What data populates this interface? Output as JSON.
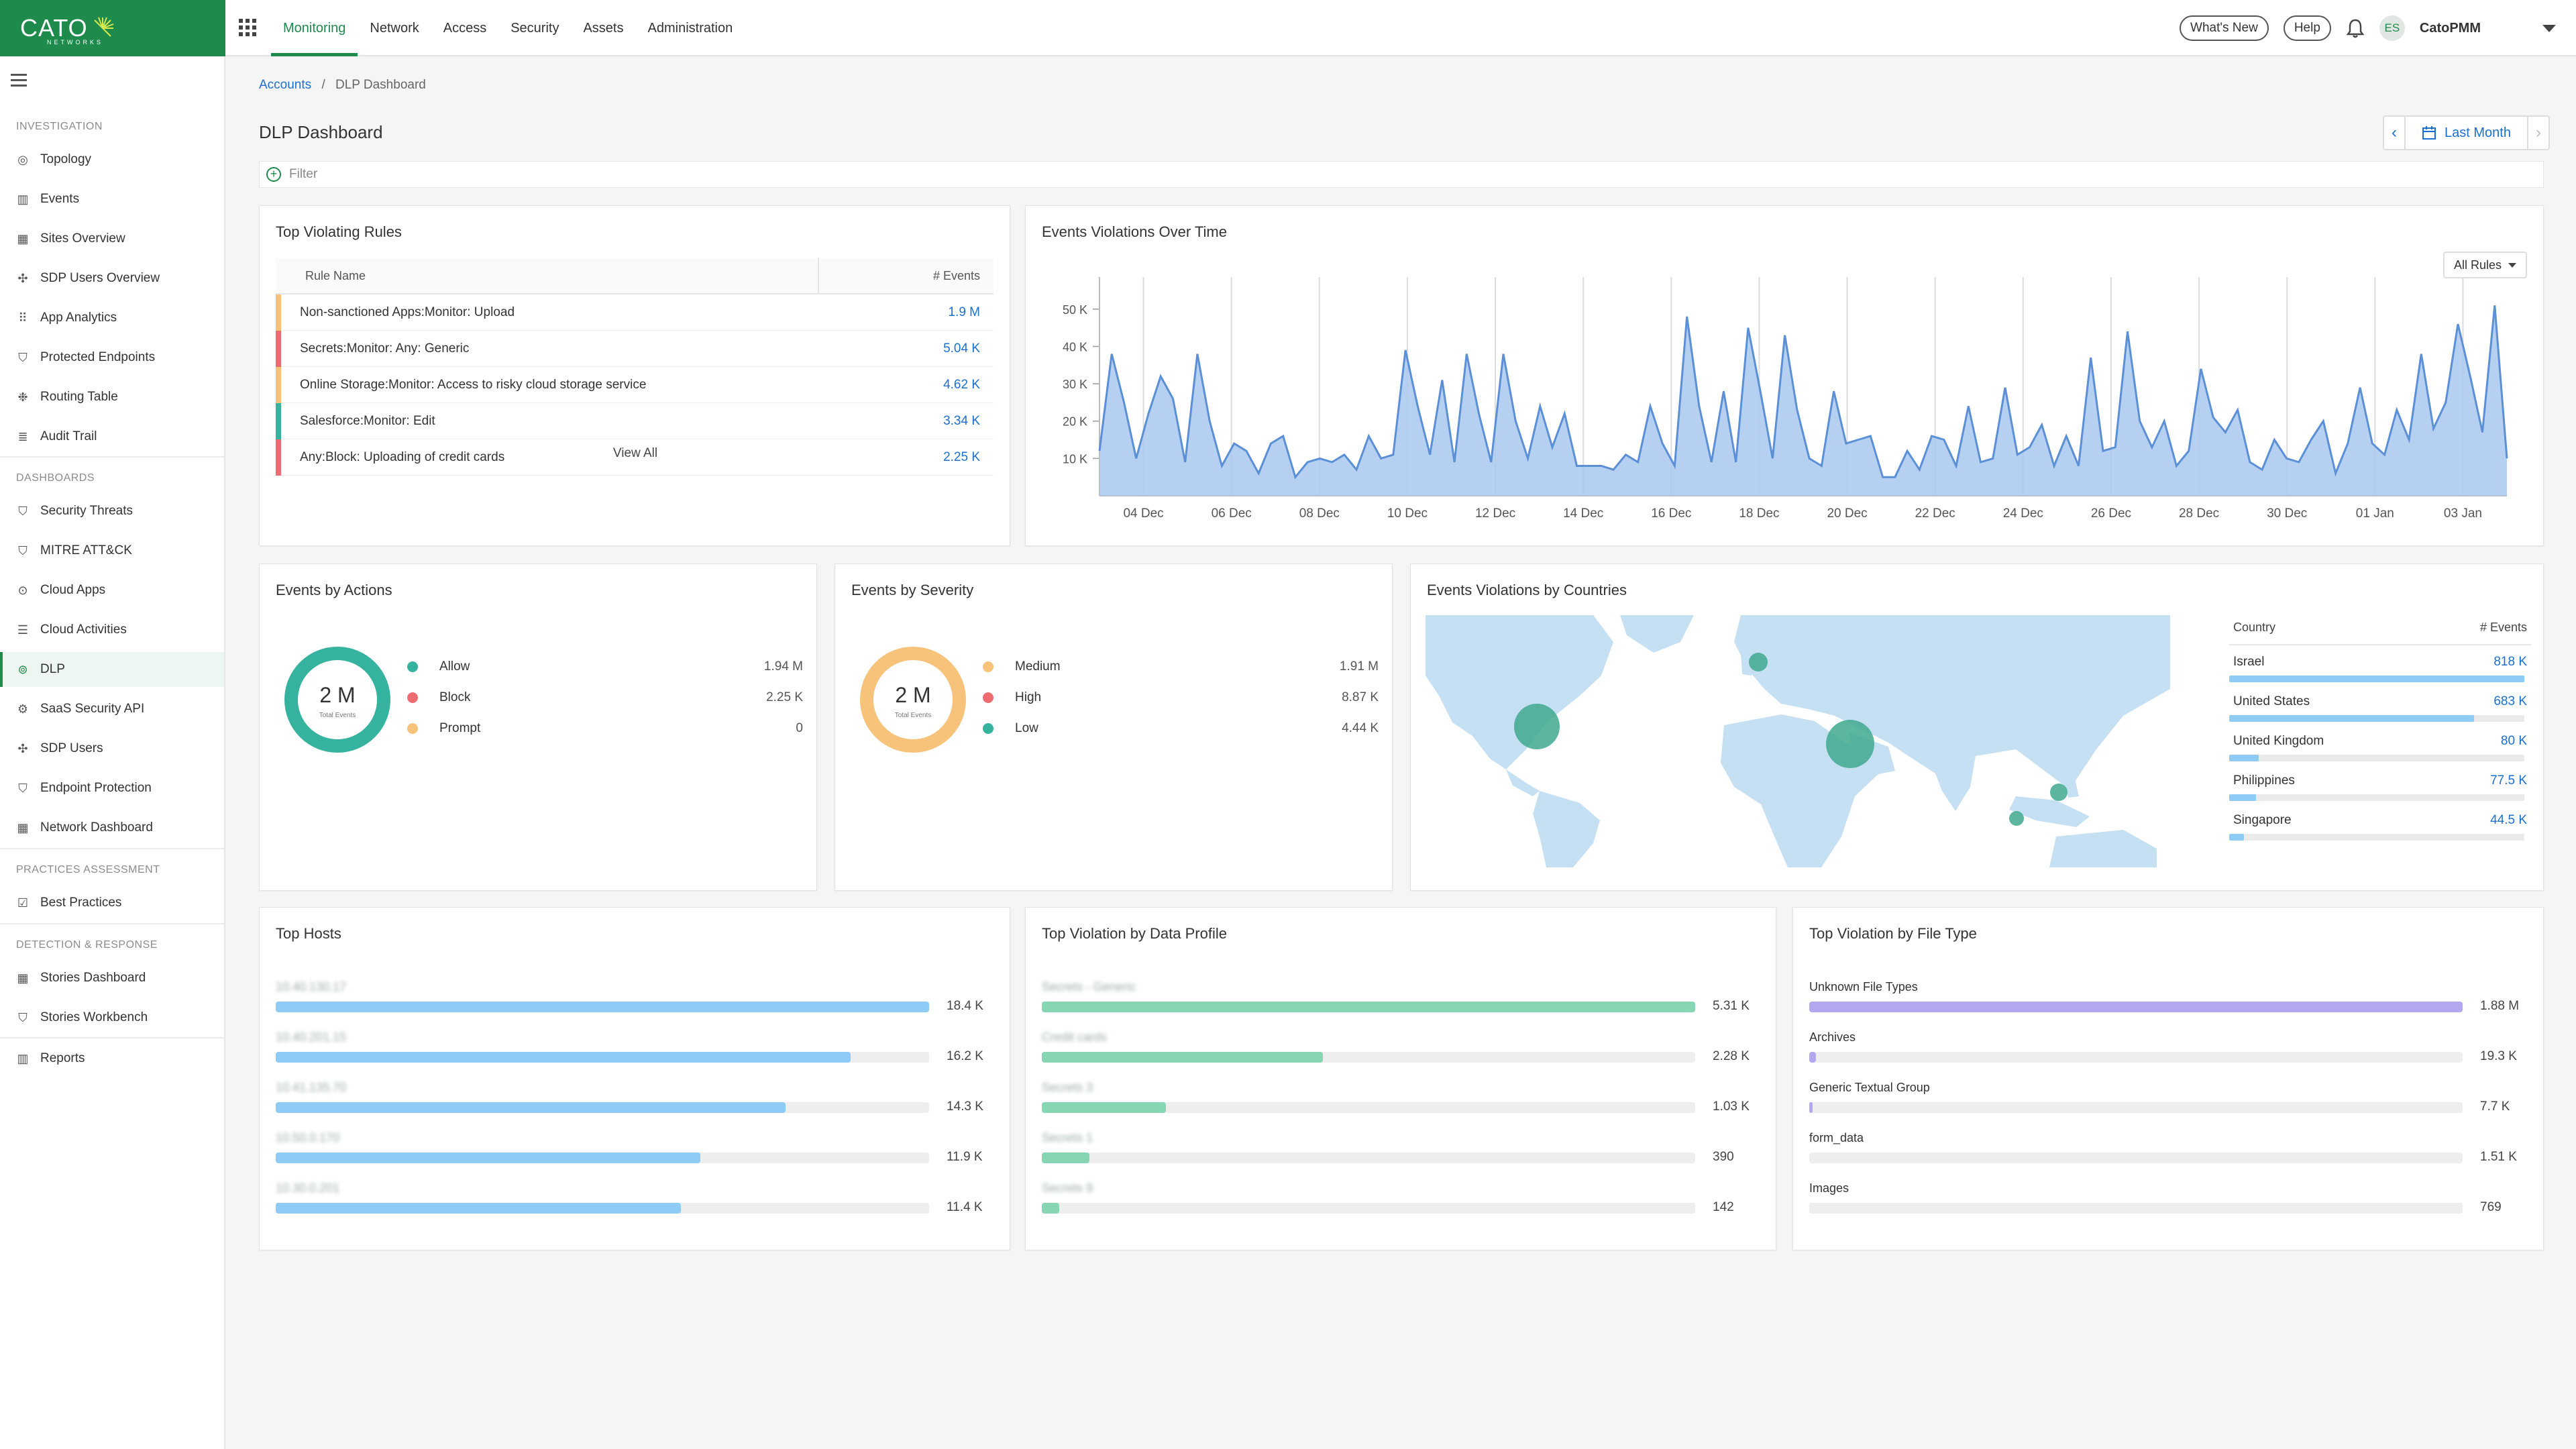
{
  "header": {
    "logo_text": "CATO",
    "logo_sub": "NETWORKS",
    "nav": [
      "Monitoring",
      "Network",
      "Access",
      "Security",
      "Assets",
      "Administration"
    ],
    "whats_new": "What's New",
    "help": "Help",
    "avatar_initials": "ES",
    "user_name": "CatoPMM"
  },
  "sidebar": {
    "sections": [
      {
        "title": "INVESTIGATION",
        "items": [
          {
            "label": "Topology",
            "icon": "target-icon"
          },
          {
            "label": "Events",
            "icon": "bar-chart-icon"
          },
          {
            "label": "Sites Overview",
            "icon": "table-icon"
          },
          {
            "label": "SDP Users Overview",
            "icon": "network-icon"
          },
          {
            "label": "App Analytics",
            "icon": "grid-icon"
          },
          {
            "label": "Protected Endpoints",
            "icon": "shield-icon"
          },
          {
            "label": "Routing Table",
            "icon": "routing-icon"
          },
          {
            "label": "Audit Trail",
            "icon": "list-icon"
          }
        ]
      },
      {
        "title": "DASHBOARDS",
        "items": [
          {
            "label": "Security Threats",
            "icon": "shield-icon"
          },
          {
            "label": "MITRE ATT&CK",
            "icon": "shield-icon"
          },
          {
            "label": "Cloud Apps",
            "icon": "cloud-app-icon"
          },
          {
            "label": "Cloud Activities",
            "icon": "list-icon"
          },
          {
            "label": "DLP",
            "icon": "dlp-icon"
          },
          {
            "label": "SaaS Security API",
            "icon": "gear-icon"
          },
          {
            "label": "SDP Users",
            "icon": "network-icon"
          },
          {
            "label": "Endpoint Protection",
            "icon": "shield-icon"
          },
          {
            "label": "Network Dashboard",
            "icon": "grid-icon"
          }
        ]
      },
      {
        "title": "PRACTICES ASSESSMENT",
        "items": [
          {
            "label": "Best Practices",
            "icon": "checkbox-icon"
          }
        ]
      },
      {
        "title": "DETECTION & RESPONSE",
        "items": [
          {
            "label": "Stories Dashboard",
            "icon": "table-icon"
          },
          {
            "label": "Stories Workbench",
            "icon": "shield-icon"
          }
        ]
      },
      {
        "title": "",
        "items": [
          {
            "label": "Reports",
            "icon": "bar-chart-icon"
          }
        ]
      }
    ],
    "active": "DLP"
  },
  "breadcrumb": {
    "root": "Accounts",
    "separator": "/",
    "current": "DLP Dashboard"
  },
  "page_title": "DLP Dashboard",
  "date_picker": {
    "label": "Last Month"
  },
  "filter": {
    "placeholder": "Filter"
  },
  "top_rules": {
    "title": "Top Violating Rules",
    "col_name": "Rule Name",
    "col_events": "# Events",
    "rows": [
      {
        "name": "Non-sanctioned Apps:Monitor: Upload",
        "events": "1.9 M",
        "color": "#f7c27a"
      },
      {
        "name": "Secrets:Monitor: Any: Generic",
        "events": "5.04 K",
        "color": "#ef6b72"
      },
      {
        "name": "Online Storage:Monitor: Access to risky cloud storage service",
        "events": "4.62 K",
        "color": "#f7c27a"
      },
      {
        "name": "Salesforce:Monitor: Edit",
        "events": "3.34 K",
        "color": "#35b39e"
      },
      {
        "name": "Any:Block: Uploading of credit cards",
        "events": "2.25 K",
        "color": "#ef6b72"
      }
    ],
    "view_all": "View All"
  },
  "violations_over_time": {
    "title": "Events Violations Over Time",
    "filter_label": "All Rules"
  },
  "chart_data": {
    "type": "area",
    "title": "Events Violations Over Time",
    "ylim": [
      0,
      55
    ],
    "yticks": [
      "10 K",
      "20 K",
      "30 K",
      "40 K",
      "50 K"
    ],
    "ytick_values": [
      10,
      20,
      30,
      40,
      50
    ],
    "xtick_labels": [
      "04 Dec",
      "06 Dec",
      "08 Dec",
      "10 Dec",
      "12 Dec",
      "14 Dec",
      "16 Dec",
      "18 Dec",
      "20 Dec",
      "22 Dec",
      "24 Dec",
      "26 Dec",
      "28 Dec",
      "30 Dec",
      "01 Jan",
      "03 Jan"
    ],
    "y": [
      12,
      38,
      25,
      10,
      22,
      32,
      26,
      9,
      38,
      20,
      8,
      14,
      12,
      6,
      14,
      16,
      5,
      9,
      10,
      9,
      11,
      7,
      16,
      10,
      11,
      39,
      24,
      11,
      31,
      9,
      38,
      22,
      9,
      38,
      20,
      10,
      24,
      13,
      22,
      8,
      8,
      8,
      7,
      11,
      9,
      24,
      14,
      8,
      48,
      24,
      9,
      28,
      9,
      45,
      28,
      10,
      43,
      23,
      10,
      8,
      28,
      14,
      15,
      16,
      5,
      5,
      12,
      7,
      16,
      15,
      8,
      24,
      9,
      10,
      29,
      11,
      13,
      19,
      8,
      16,
      8,
      37,
      12,
      13,
      44,
      20,
      13,
      20,
      8,
      12,
      34,
      21,
      17,
      23,
      9,
      7,
      15,
      10,
      9,
      15,
      20,
      6,
      14,
      29,
      14,
      11,
      23,
      15,
      38,
      18,
      25,
      46,
      32,
      17,
      51,
      10
    ],
    "fill": "#a9c8ef",
    "line": "#5b8fd6"
  },
  "events_by_actions": {
    "title": "Events by Actions",
    "center_value": "2 M",
    "center_label": "Total Events",
    "ring_color": "#35b39e",
    "items": [
      {
        "label": "Allow",
        "value": "1.94 M",
        "color": "#35b39e"
      },
      {
        "label": "Block",
        "value": "2.25 K",
        "color": "#ef6b72"
      },
      {
        "label": "Prompt",
        "value": "0",
        "color": "#f7c27a"
      }
    ]
  },
  "events_by_severity": {
    "title": "Events by Severity",
    "center_value": "2 M",
    "center_label": "Total Events",
    "ring_color": "#f7c27a",
    "items": [
      {
        "label": "Medium",
        "value": "1.91 M",
        "color": "#f7c27a"
      },
      {
        "label": "High",
        "value": "8.87 K",
        "color": "#ef6b72"
      },
      {
        "label": "Low",
        "value": "4.44 K",
        "color": "#35b39e"
      }
    ]
  },
  "countries": {
    "title": "Events Violations by Countries",
    "col_country": "Country",
    "col_events": "# Events",
    "rows": [
      {
        "name": "Israel",
        "value": "818 K",
        "pct": 1.0
      },
      {
        "name": "United States",
        "value": "683 K",
        "pct": 0.83
      },
      {
        "name": "United Kingdom",
        "value": "80 K",
        "pct": 0.1
      },
      {
        "name": "Philippines",
        "value": "77.5 K",
        "pct": 0.09
      },
      {
        "name": "Singapore",
        "value": "44.5 K",
        "pct": 0.05
      }
    ]
  },
  "top_hosts": {
    "title": "Top Hosts",
    "color": "#8ecbf5",
    "rows": [
      {
        "label": "10.40.130.17",
        "value": "18.4 K",
        "pct": 1.0
      },
      {
        "label": "10.40.201.15",
        "value": "16.2 K",
        "pct": 0.88
      },
      {
        "label": "10.41.135.70",
        "value": "14.3 K",
        "pct": 0.78
      },
      {
        "label": "10.50.0.170",
        "value": "11.9 K",
        "pct": 0.65
      },
      {
        "label": "10.30.0.201",
        "value": "11.4 K",
        "pct": 0.62
      }
    ]
  },
  "top_data_profile": {
    "title": "Top Violation by Data Profile",
    "color": "#86d6b3",
    "rows": [
      {
        "label": "Secrets - Generic",
        "value": "5.31 K",
        "pct": 1.0
      },
      {
        "label": "Credit cards",
        "value": "2.28 K",
        "pct": 0.43
      },
      {
        "label": "Secrets 3",
        "value": "1.03 K",
        "pct": 0.19
      },
      {
        "label": "Secrets 1",
        "value": "390",
        "pct": 0.073
      },
      {
        "label": "Secrets 9",
        "value": "142",
        "pct": 0.027
      }
    ]
  },
  "top_file_type": {
    "title": "Top Violation by File Type",
    "color": "#b3a8ef",
    "rows": [
      {
        "label": "Unknown File Types",
        "value": "1.88 M",
        "pct": 1.0
      },
      {
        "label": "Archives",
        "value": "19.3 K",
        "pct": 0.01
      },
      {
        "label": "Generic Textual Group",
        "value": "7.7 K",
        "pct": 0.004
      },
      {
        "label": "form_data",
        "value": "1.51 K",
        "pct": 0.0
      },
      {
        "label": "Images",
        "value": "769",
        "pct": 0.0
      }
    ]
  }
}
